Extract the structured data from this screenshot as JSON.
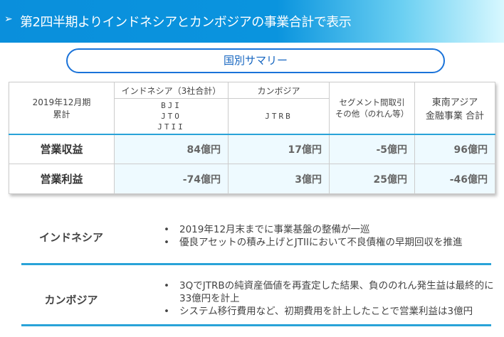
{
  "header": {
    "title": "第2四半期よりインドネシアとカンボジアの事業合計で表示"
  },
  "summary_label": "国別サマリー",
  "table": {
    "period": "2019年12月期",
    "period_sub": "累計",
    "col_indonesia": "インドネシア（3社合計）",
    "indonesia_companies": [
      "BJI",
      "JTO",
      "JTII"
    ],
    "col_cambodia": "カンボジア",
    "cambodia_companies": [
      "JTRB"
    ],
    "col_other": [
      "セグメント間取引",
      "その他（のれん等）"
    ],
    "col_total": [
      "東南アジア",
      "金融事業 合計"
    ],
    "rows": [
      {
        "label": "営業収益",
        "values": [
          "84億円",
          "17億円",
          "-5億円",
          "96億円"
        ]
      },
      {
        "label": "営業利益",
        "values": [
          "-74億円",
          "3億円",
          "25億円",
          "-46億円"
        ]
      }
    ]
  },
  "sections": [
    {
      "name": "インドネシア",
      "bullets": [
        "2019年12月末までに事業基盤の整備が一巡",
        "優良アセットの積み上げとJTIIにおいて不良債権の早期回収を推進"
      ]
    },
    {
      "name": "カンボジア",
      "bullets": [
        "3QでJTRBの純資産価値を再査定した結果、負ののれん発生益は最終的に33億円を計上",
        "システム移行費用など、初期費用を計上したことで営業利益は3億円"
      ]
    }
  ],
  "colors": {
    "accent": "#29a3d8",
    "pill_border": "#1a73d9",
    "data_bg": "#eefaff"
  }
}
